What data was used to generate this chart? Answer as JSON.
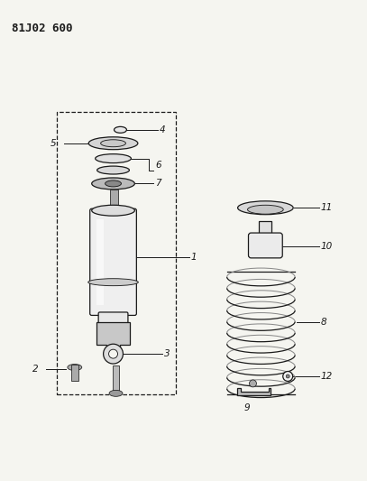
{
  "title": "81J02 600",
  "bg_color": "#f5f5f0",
  "line_color": "#1a1a1a",
  "fig_w": 4.07,
  "fig_h": 5.33,
  "dpi": 100
}
